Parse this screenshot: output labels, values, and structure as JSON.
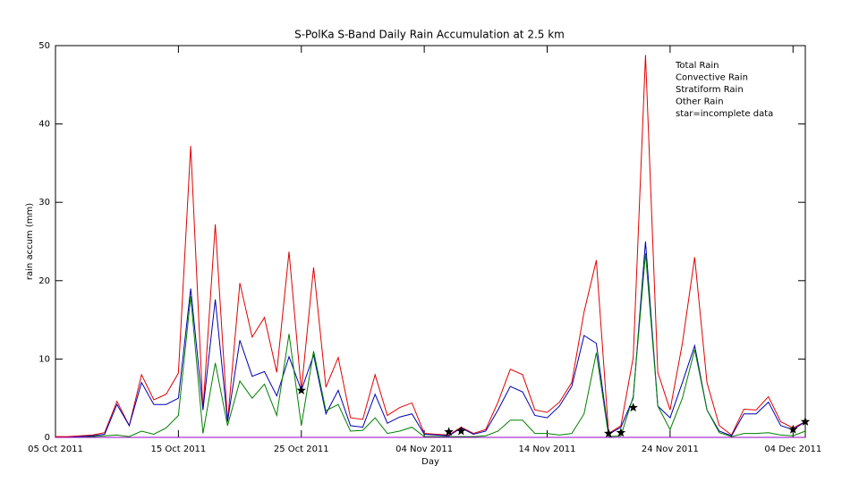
{
  "chart_data": {
    "type": "line",
    "title": "S-PolKa S-Band Daily Rain Accumulation at 2.5 km",
    "x_label": "Day",
    "y_label": "rain accum (mm)",
    "x": [
      0,
      1,
      2,
      3,
      4,
      5,
      6,
      7,
      8,
      9,
      10,
      11,
      12,
      13,
      14,
      15,
      16,
      17,
      18,
      19,
      20,
      21,
      22,
      23,
      24,
      25,
      26,
      27,
      28,
      29,
      30,
      31,
      32,
      33,
      34,
      35,
      36,
      37,
      38,
      39,
      40,
      41,
      42,
      43,
      44,
      45,
      46,
      47,
      48,
      49,
      50,
      51,
      52,
      53,
      54,
      55,
      56,
      57,
      58,
      59,
      60,
      61
    ],
    "xlim": [
      0,
      61
    ],
    "xticks": [
      {
        "value": 0,
        "label": "05 Oct 2011"
      },
      {
        "value": 10,
        "label": "15 Oct 2011"
      },
      {
        "value": 20,
        "label": "25 Oct 2011"
      },
      {
        "value": 30,
        "label": "04 Nov 2011"
      },
      {
        "value": 40,
        "label": "14 Nov 2011"
      },
      {
        "value": 50,
        "label": "24 Nov 2011"
      },
      {
        "value": 60,
        "label": "04 Dec 2011"
      }
    ],
    "ylim": [
      0,
      50
    ],
    "yticks": [
      0,
      10,
      20,
      30,
      40,
      50
    ],
    "series": [
      {
        "name": "Total Rain",
        "color": "#e00000",
        "values": [
          0.1,
          0.1,
          0.2,
          0.3,
          0.6,
          4.6,
          1.5,
          8,
          4.8,
          5.5,
          8.2,
          37.2,
          3.5,
          27.2,
          2,
          19.7,
          12.8,
          15.3,
          8.3,
          23.7,
          6,
          21.7,
          6.4,
          10.2,
          2.5,
          2.3,
          8,
          2.8,
          3.8,
          4.4,
          0.5,
          0.4,
          0.3,
          1.3,
          0.5,
          1,
          4.5,
          8.7,
          8,
          3.5,
          3.2,
          4.5,
          7,
          16,
          22.6,
          0.5,
          1.5,
          10.2,
          48.8,
          8.3,
          3.5,
          12,
          23,
          7,
          1.5,
          0.3,
          3.6,
          3.5,
          5.2,
          2,
          1.2,
          2
        ]
      },
      {
        "name": "Convective Rain",
        "color": "#0000b0",
        "values": [
          0,
          0,
          0.1,
          0.2,
          0.4,
          4.2,
          1.5,
          7,
          4.2,
          4.2,
          5,
          19,
          3.5,
          17.6,
          2,
          12.4,
          7.8,
          8.4,
          5.3,
          10.3,
          6,
          10.5,
          3,
          6,
          1.5,
          1.3,
          5.5,
          1.8,
          2.6,
          3,
          0.4,
          0.3,
          0.2,
          1.2,
          0.4,
          0.8,
          3.5,
          6.5,
          5.8,
          2.8,
          2.5,
          4,
          6.5,
          13,
          12,
          0.4,
          1.3,
          5,
          25,
          4,
          2.5,
          7,
          11.7,
          3.5,
          0.8,
          0.2,
          3,
          3,
          4.5,
          1.5,
          1,
          2
        ]
      },
      {
        "name": "Stratiform Rain",
        "color": "#008000",
        "values": [
          0,
          0,
          0,
          0.1,
          0.2,
          0.3,
          0.1,
          0.8,
          0.4,
          1.2,
          2.8,
          18,
          0.5,
          9.5,
          1.5,
          7.2,
          5,
          6.8,
          2.8,
          13.2,
          1.5,
          11,
          3.4,
          4.2,
          0.8,
          0.9,
          2.5,
          0.5,
          0.8,
          1.3,
          0.1,
          0.1,
          0.1,
          0.1,
          0.1,
          0.2,
          0.8,
          2.2,
          2.2,
          0.5,
          0.5,
          0.3,
          0.5,
          3,
          10.8,
          0.1,
          0.2,
          5.2,
          23.5,
          4,
          1,
          5,
          11.2,
          3.5,
          0.6,
          0.1,
          0.5,
          0.5,
          0.6,
          0.3,
          0.2,
          0.8
        ]
      },
      {
        "name": "Other Rain",
        "color": "#9a00c8",
        "values": [
          0,
          0,
          0,
          0,
          0,
          0,
          0,
          0,
          0,
          0,
          0,
          0,
          0,
          0,
          0,
          0,
          0,
          0,
          0,
          0,
          0,
          0,
          0,
          0,
          0,
          0,
          0,
          0,
          0,
          0,
          0,
          0,
          0,
          0,
          0,
          0,
          0,
          0,
          0,
          0,
          0,
          0,
          0,
          0,
          0,
          0,
          0,
          0,
          0,
          0,
          0,
          0,
          0,
          0,
          0,
          0,
          0,
          0,
          0,
          0,
          0,
          0
        ]
      }
    ],
    "stars": {
      "name": "star=incomplete data",
      "color": "#000000",
      "x": [
        20,
        32,
        33,
        45,
        46,
        47,
        60,
        61
      ],
      "y": [
        6,
        0.7,
        0.8,
        0.5,
        0.6,
        3.8,
        1,
        2
      ]
    }
  }
}
